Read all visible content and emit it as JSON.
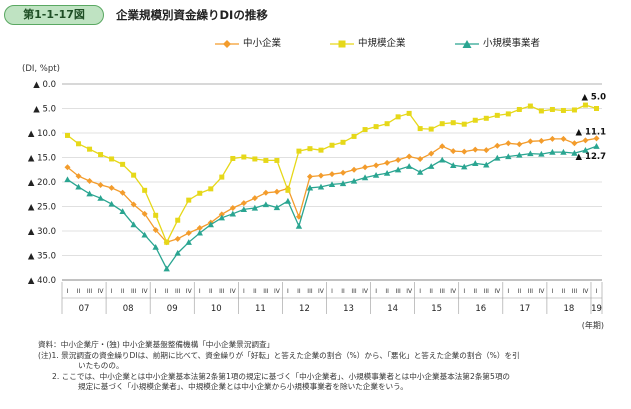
{
  "figure": {
    "badge": "第1-1-17図",
    "title": "企業規模別資金繰りDIの推移"
  },
  "chart_data": {
    "type": "line",
    "unit_label": "(DI, %pt)",
    "x_unit_label": "(年期)",
    "ylim": [
      -40,
      0
    ],
    "y_ticks": [
      "▲ 0.0",
      "▲ 5.0",
      "▲ 10.0",
      "▲ 15.0",
      "▲ 20.0",
      "▲ 25.0",
      "▲ 30.0",
      "▲ 35.0",
      "▲ 40.0"
    ],
    "y_tick_values": [
      0,
      -5,
      -10,
      -15,
      -20,
      -25,
      -30,
      -35,
      -40
    ],
    "grid": "horizontal",
    "legend_position": "top",
    "quarter_labels": [
      "I",
      "II",
      "III",
      "IV",
      "I",
      "II",
      "III",
      "IV",
      "I",
      "II",
      "III",
      "IV",
      "I",
      "II",
      "III",
      "IV",
      "I",
      "II",
      "III",
      "IV",
      "I",
      "II",
      "III",
      "IV",
      "I",
      "II",
      "III",
      "IV",
      "I",
      "II",
      "III",
      "IV",
      "I",
      "II",
      "III",
      "IV",
      "I",
      "II",
      "III",
      "IV",
      "I",
      "II",
      "III",
      "IV",
      "I",
      "II",
      "III",
      "IV",
      "I"
    ],
    "year_labels": [
      "07",
      "08",
      "09",
      "10",
      "11",
      "12",
      "13",
      "14",
      "15",
      "16",
      "17",
      "18",
      "19"
    ],
    "year_start_index": [
      0,
      4,
      8,
      12,
      16,
      20,
      24,
      28,
      32,
      36,
      40,
      44,
      48
    ],
    "series": [
      {
        "name": "中小企業",
        "color": "#f39c2c",
        "marker": "diamond",
        "values": [
          -17.0,
          -18.8,
          -19.8,
          -20.6,
          -21.2,
          -22.2,
          -24.6,
          -26.5,
          -29.8,
          -32.3,
          -31.6,
          -30.4,
          -29.4,
          -28.3,
          -26.6,
          -25.3,
          -24.3,
          -23.3,
          -22.2,
          -22.0,
          -21.3,
          -27.1,
          -18.9,
          -18.7,
          -18.4,
          -18.1,
          -17.5,
          -17.0,
          -16.6,
          -16.1,
          -15.5,
          -14.8,
          -15.3,
          -14.2,
          -12.7,
          -13.7,
          -13.8,
          -13.4,
          -13.5,
          -12.6,
          -12.1,
          -12.3,
          -11.7,
          -11.6,
          -11.2,
          -11.2,
          -12.1,
          -11.5,
          -11.1
        ]
      },
      {
        "name": "中規模企業",
        "color": "#e6d819",
        "marker": "square",
        "values": [
          -10.5,
          -12.2,
          -13.3,
          -14.4,
          -15.3,
          -16.4,
          -18.6,
          -21.7,
          -26.8,
          -32.3,
          -27.8,
          -23.7,
          -22.3,
          -21.4,
          -19.0,
          -15.2,
          -14.9,
          -15.3,
          -15.6,
          -15.6,
          -21.7,
          -13.7,
          -13.2,
          -13.5,
          -12.5,
          -11.9,
          -10.7,
          -9.3,
          -8.7,
          -8.1,
          -6.7,
          -6.0,
          -9.1,
          -9.2,
          -8.1,
          -7.9,
          -8.2,
          -7.4,
          -7.0,
          -6.4,
          -6.1,
          -5.2,
          -4.5,
          -5.5,
          -5.2,
          -5.4,
          -5.3,
          -4.3,
          -5.0
        ]
      },
      {
        "name": "小規模事業者",
        "color": "#2aa591",
        "marker": "triangle",
        "values": [
          -19.5,
          -21.0,
          -22.4,
          -23.3,
          -24.5,
          -26.0,
          -28.7,
          -30.8,
          -33.3,
          -37.7,
          -34.5,
          -32.3,
          -30.4,
          -28.7,
          -27.3,
          -26.5,
          -25.6,
          -25.3,
          -24.6,
          -25.2,
          -23.9,
          -29.0,
          -21.2,
          -21.0,
          -20.5,
          -20.3,
          -19.8,
          -19.1,
          -18.6,
          -18.2,
          -17.5,
          -16.8,
          -18.0,
          -16.8,
          -15.5,
          -16.6,
          -16.9,
          -16.2,
          -16.5,
          -15.1,
          -14.8,
          -14.5,
          -14.2,
          -14.3,
          -13.9,
          -13.9,
          -14.1,
          -13.5,
          -12.7
        ]
      }
    ],
    "annotations": [
      {
        "text": "▲ 5.0",
        "series": "中規模企業",
        "index": 48,
        "value": -5.0
      },
      {
        "text": "▲ 11.1",
        "series": "中小企業",
        "index": 48,
        "value": -11.1
      },
      {
        "text": "▲ 12.7",
        "series": "小規模事業者",
        "index": 48,
        "value": -12.7
      }
    ]
  },
  "notes": [
    "資料：中小企業庁・(独) 中小企業基盤整備機構「中小企業景況調査」",
    "(注)1. 景況調査の資金繰りDIは、前期に比べて、資金繰りが「好転」と答えた企業の割合（%）から、「悪化」と答えた企業の割合（%）を引",
    "いたものの。",
    "2. ここでは、中小企業とは中小企業基本法第2条第1項の規定に基づく「中小企業者」、小規模事業者とは中小企業基本法第2条第5項の",
    "規定に基づく「小規模企業者」、中規模企業とは中小企業から小規模事業者を除いた企業をいう。"
  ]
}
